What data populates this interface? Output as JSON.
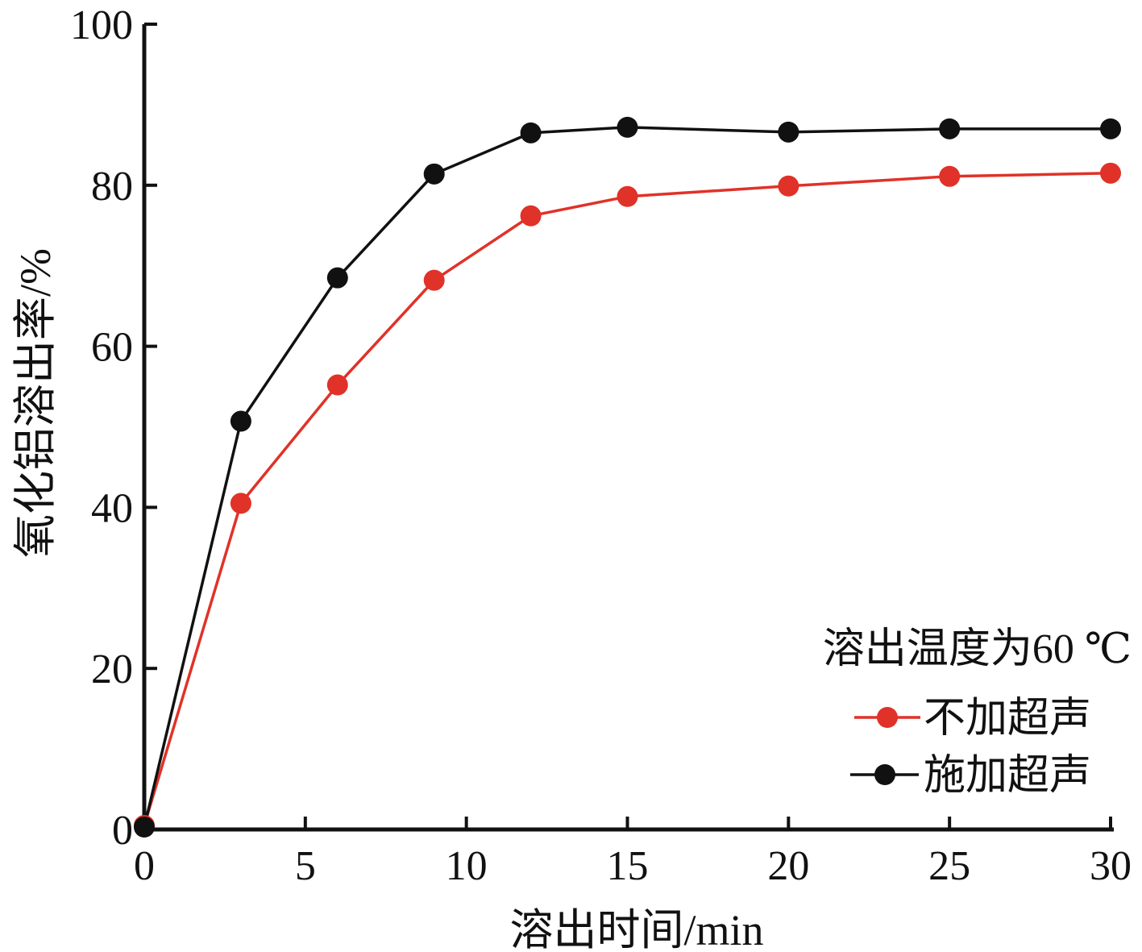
{
  "chart_data": {
    "type": "line",
    "xlabel": "溶出时间/min",
    "ylabel": "氧化铝溶出率/%",
    "xlim": [
      0,
      30
    ],
    "ylim": [
      0,
      100
    ],
    "xticks": [
      "0",
      "5",
      "10",
      "15",
      "20",
      "25",
      "30"
    ],
    "yticks": [
      "0",
      "20",
      "40",
      "60",
      "80",
      "100"
    ],
    "annotation": "溶出温度为60 ℃",
    "legend_position": "lower-right",
    "grid": false,
    "series": [
      {
        "name": "不加超声",
        "color": "#e03228",
        "x": [
          0,
          3,
          6,
          9,
          12,
          15,
          20,
          25,
          30
        ],
        "y": [
          0.5,
          40.5,
          55.2,
          68.2,
          76.2,
          78.6,
          79.9,
          81.1,
          81.5
        ]
      },
      {
        "name": "施加超声",
        "color": "#111111",
        "x": [
          0,
          3,
          6,
          9,
          12,
          15,
          20,
          25,
          30
        ],
        "y": [
          0.3,
          50.7,
          68.5,
          81.4,
          86.5,
          87.2,
          86.6,
          87.0,
          87.0
        ]
      }
    ]
  }
}
